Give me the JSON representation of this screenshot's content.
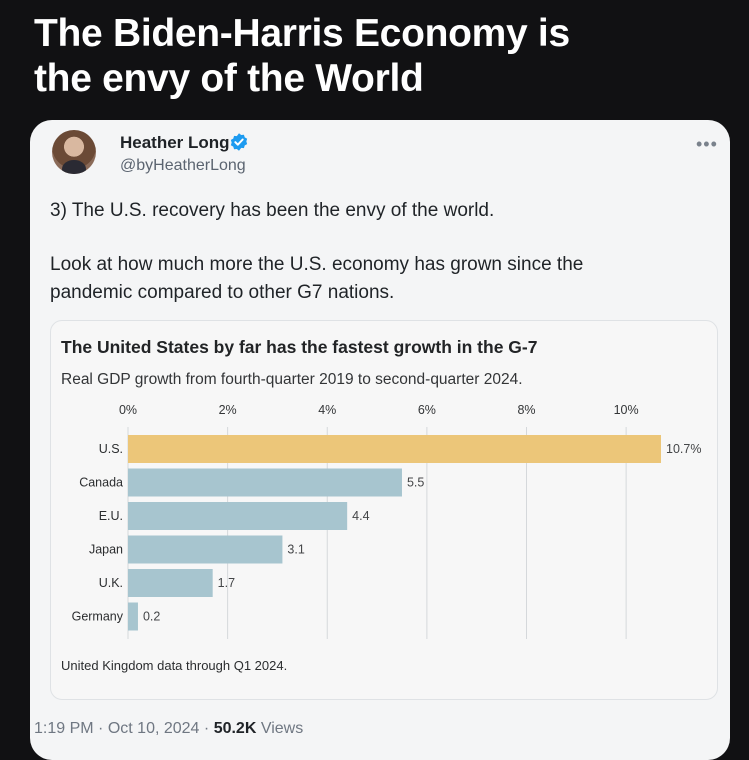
{
  "headline": {
    "line1": "The Biden-Harris Economy is",
    "line2": "the envy of the World"
  },
  "tweet": {
    "author_name": "Heather Long",
    "handle": "@byHeatherLong",
    "text_line1": "3) The U.S. recovery has been the envy of the world.",
    "text_line2": "Look at how much more the U.S. economy has grown since the",
    "text_line3": "pandemic compared to other G7 nations.",
    "more_glyph": "•••",
    "icons": {
      "verified": "verified-badge-icon",
      "more": "more-options-icon"
    },
    "colors": {
      "verified": "#1d9bf0"
    }
  },
  "chart_data": {
    "type": "bar",
    "orientation": "horizontal",
    "title": "The United States by far has the fastest growth in the G-7",
    "subtitle": "Real GDP growth from fourth-quarter 2019 to second-quarter 2024.",
    "categories": [
      "U.S.",
      "Canada",
      "E.U.",
      "Japan",
      "U.K.",
      "Germany"
    ],
    "values": [
      10.7,
      5.5,
      4.4,
      3.1,
      1.7,
      0.2
    ],
    "value_labels": [
      "10.7%",
      "5.5",
      "4.4",
      "3.1",
      "1.7",
      "0.2"
    ],
    "axis_ticks": [
      0,
      2,
      4,
      6,
      8,
      10
    ],
    "axis_tick_labels": [
      "0%",
      "2%",
      "4%",
      "6%",
      "8%",
      "10%"
    ],
    "xlim": [
      0,
      10.7
    ],
    "axis_position": "top",
    "grid": true,
    "colors": {
      "highlight": "#ecc679",
      "default": "#a7c5cf"
    },
    "note": "United Kingdom data through Q1 2024."
  },
  "footer": {
    "time": "1:19 PM",
    "separator": "·",
    "date": "Oct 10, 2024",
    "views_count": "50.2K",
    "views_label": "Views"
  }
}
